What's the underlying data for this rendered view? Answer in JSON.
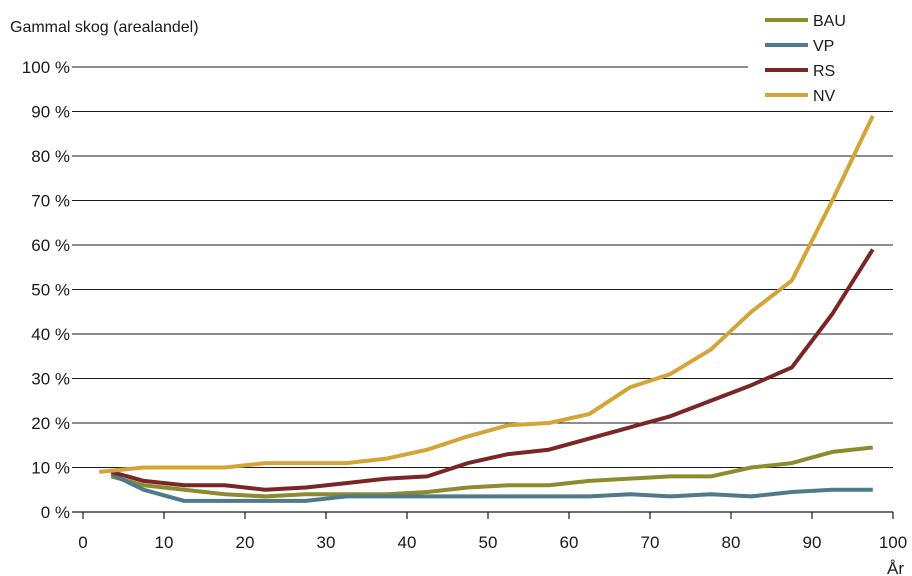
{
  "chart_data": {
    "type": "line",
    "ylabel": "Gammal skog (arealandel)",
    "xlabel": "År",
    "xlim": [
      0,
      100
    ],
    "ylim": [
      0,
      100
    ],
    "x_ticks": [
      0,
      10,
      20,
      30,
      40,
      50,
      60,
      70,
      80,
      90,
      100
    ],
    "x_tick_labels": [
      "0",
      "10",
      "20",
      "30",
      "40",
      "50",
      "60",
      "70",
      "80",
      "90",
      "100"
    ],
    "y_ticks": [
      0,
      10,
      20,
      30,
      40,
      50,
      60,
      70,
      80,
      90,
      100
    ],
    "y_tick_labels": [
      "0 %",
      "10 %",
      "20 %",
      "30 %",
      "40 %",
      "50 %",
      "60 %",
      "70 %",
      "80 %",
      "90 %",
      "100 %"
    ],
    "grid": "horizontal",
    "legend_position": "top-right",
    "series": [
      {
        "name": "BAU",
        "color": "#8c8c2f",
        "x": [
          3.5,
          7.5,
          12.5,
          17.5,
          22.5,
          27.5,
          32.5,
          37.5,
          42.5,
          47.5,
          52.5,
          57.5,
          62.5,
          67.5,
          72.5,
          77.5,
          82.5,
          87.5,
          92.5,
          97.5
        ],
        "y": [
          8,
          6,
          5,
          4,
          3.5,
          4,
          4,
          4,
          4.5,
          5.5,
          6,
          6,
          7,
          7.5,
          8,
          8,
          10,
          11,
          13.5,
          14.5
        ]
      },
      {
        "name": "VP",
        "color": "#4f7a8c",
        "x": [
          3.5,
          7.5,
          12.5,
          17.5,
          22.5,
          27.5,
          32.5,
          37.5,
          42.5,
          47.5,
          52.5,
          57.5,
          62.5,
          67.5,
          72.5,
          77.5,
          82.5,
          87.5,
          92.5,
          97.5
        ],
        "y": [
          8.5,
          5,
          2.5,
          2.5,
          2.5,
          2.5,
          3.5,
          3.5,
          3.5,
          3.5,
          3.5,
          3.5,
          3.5,
          4,
          3.5,
          4,
          3.5,
          4.5,
          5,
          5
        ]
      },
      {
        "name": "RS",
        "color": "#7a2626",
        "x": [
          3.5,
          7.5,
          12.5,
          17.5,
          22.5,
          27.5,
          32.5,
          37.5,
          42.5,
          47.5,
          52.5,
          57.5,
          62.5,
          67.5,
          72.5,
          77.5,
          82.5,
          87.5,
          92.5,
          97.5
        ],
        "y": [
          9,
          7,
          6,
          6,
          5,
          5.5,
          6.5,
          7.5,
          8,
          11,
          13,
          14,
          16.5,
          19,
          21.5,
          25,
          28.5,
          32.5,
          44.5,
          59
        ]
      },
      {
        "name": "NV",
        "color": "#d4a437",
        "x": [
          2,
          7.5,
          12.5,
          17.5,
          22.5,
          27.5,
          32.5,
          37.5,
          42.5,
          47.5,
          52.5,
          57.5,
          62.5,
          67.5,
          72.5,
          77.5,
          82.5,
          87.5,
          92.5,
          97.5
        ],
        "y": [
          9,
          10,
          10,
          10,
          11,
          11,
          11,
          12,
          14,
          17,
          19.5,
          20,
          22,
          28,
          31,
          36.5,
          45,
          52,
          70,
          89
        ]
      }
    ]
  }
}
